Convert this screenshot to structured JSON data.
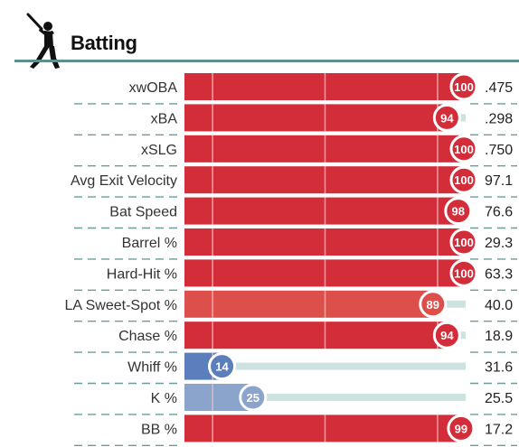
{
  "header": {
    "title": "Batting",
    "icon": "batter-silhouette-icon"
  },
  "colors": {
    "elite": "#d22d39",
    "above": "#dc4f4b",
    "poor": "#5b7fbc",
    "below": "#8aa4cb",
    "track": "#cde3e1",
    "divider": "#6a9c9a",
    "guide": "#f2c0c4"
  },
  "chart_data": {
    "type": "bar",
    "orientation": "horizontal",
    "title": "Batting",
    "xlim": [
      0,
      100
    ],
    "guides": [
      10,
      50,
      90
    ],
    "categories": [
      "xwOBA",
      "xBA",
      "xSLG",
      "Avg Exit Velocity",
      "Bat Speed",
      "Barrel %",
      "Hard-Hit %",
      "LA Sweet-Spot %",
      "Chase %",
      "Whiff %",
      "K %",
      "BB %"
    ],
    "percentiles": [
      100,
      94,
      100,
      100,
      98,
      100,
      100,
      89,
      94,
      14,
      25,
      99
    ],
    "stat_values": [
      ".475",
      ".298",
      ".750",
      "97.1",
      "76.6",
      "29.3",
      "63.3",
      "40.0",
      "18.9",
      "31.6",
      "25.5",
      "17.2"
    ]
  }
}
